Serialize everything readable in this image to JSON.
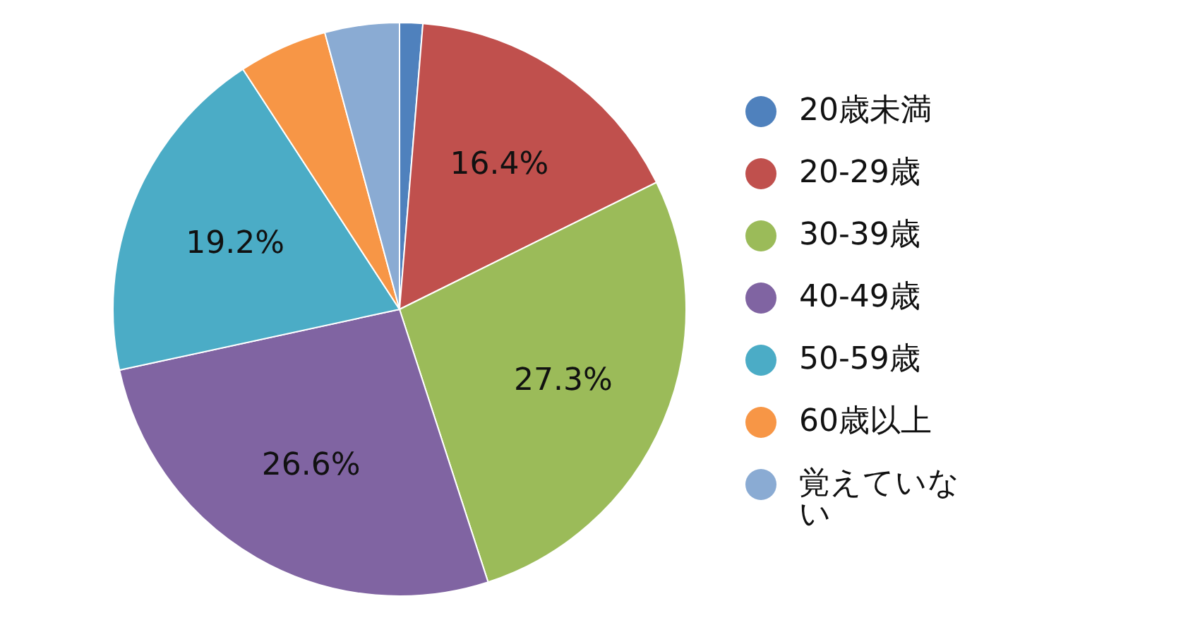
{
  "chart_data": {
    "type": "pie",
    "categories": [
      "20歳未満",
      "20-29歳",
      "30-39歳",
      "40-49歳",
      "50-59歳",
      "60歳以上",
      "覚えていない"
    ],
    "values": [
      1.3,
      16.4,
      27.3,
      26.6,
      19.2,
      5.0,
      4.2
    ],
    "colors": [
      "#4f81bd",
      "#c0504d",
      "#9bbb59",
      "#8064a2",
      "#4bacc6",
      "#f79646",
      "#8aabd3"
    ],
    "value_labels": [
      null,
      "16.4%",
      "27.3%",
      "26.6%",
      "19.2%",
      null,
      null
    ],
    "legend": "right"
  }
}
